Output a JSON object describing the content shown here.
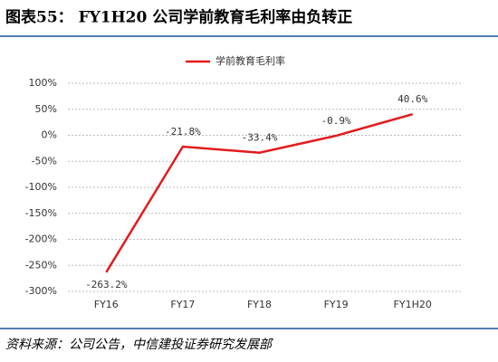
{
  "chart_data": {
    "type": "line",
    "title": "图表55： FY1H20 公司学前教育毛利率由负转正",
    "categories": [
      "FY16",
      "FY17",
      "FY18",
      "FY19",
      "FY1H20"
    ],
    "series": [
      {
        "name": "学前教育毛利率",
        "color": "#e31a1c",
        "values": [
          -263.2,
          -21.8,
          -33.4,
          -0.9,
          40.6
        ],
        "value_labels": [
          "-263.2%",
          "-21.8%",
          "-33.4%",
          "-0.9%",
          "40.6%"
        ]
      }
    ],
    "ylim": [
      -300,
      100
    ],
    "yticks": [
      {
        "value": -300,
        "label": "-300%"
      },
      {
        "value": -250,
        "label": "-250%"
      },
      {
        "value": -200,
        "label": "-200%"
      },
      {
        "value": -150,
        "label": "-150%"
      },
      {
        "value": -100,
        "label": "-100%"
      },
      {
        "value": -50,
        "label": "-50%"
      },
      {
        "value": 0,
        "label": "0%"
      },
      {
        "value": 50,
        "label": "50%"
      },
      {
        "value": 100,
        "label": "100%"
      }
    ],
    "grid": true,
    "legend": "top",
    "source": "资料来源：公司公告，中信建投证券研究发展部"
  }
}
